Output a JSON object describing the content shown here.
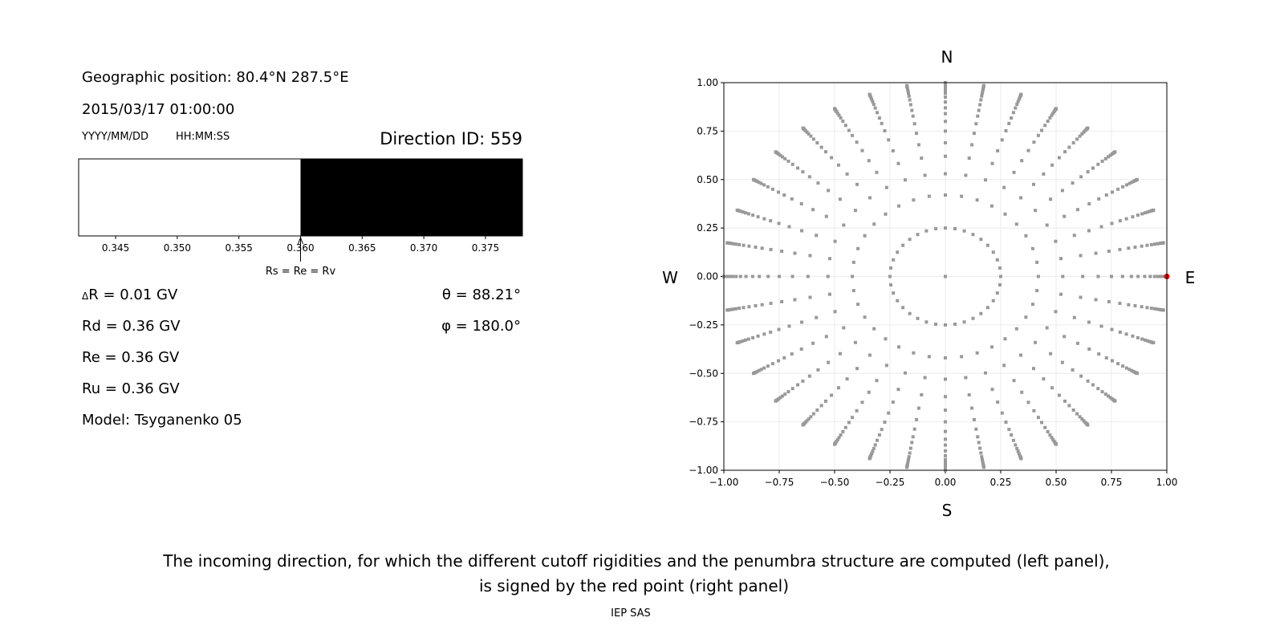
{
  "info": {
    "geo_position": "Geographic position: 80.4°N 287.5°E",
    "datetime": "2015/03/17 01:00:00",
    "date_format": "YYYY/MM/DD",
    "time_format": "HH:MM:SS",
    "direction_id": "Direction ID: 559",
    "delta_r": "R = 0.01 GV",
    "delta_symbol": "Δ",
    "rd": "Rd = 0.36 GV",
    "re": "Re = 0.36 GV",
    "ru": "Ru = 0.36 GV",
    "model": "Model: Tsyganenko 05",
    "theta": "θ = 88.21°",
    "phi": "φ = 180.0°"
  },
  "caption": {
    "line1": "The incoming direction, for which the different cutoff rigidities and the penumbra structure are computed (left panel),",
    "line2": "is signed by the red point (right panel)",
    "credit": "IEP SAS"
  },
  "chart_data": [
    {
      "type": "bar",
      "subtype": "penumbra-strip",
      "xlim": [
        0.342,
        0.378
      ],
      "xticks": [
        "0.345",
        "0.350",
        "0.355",
        "0.360",
        "0.365",
        "0.370",
        "0.375"
      ],
      "segments": [
        {
          "from": 0.342,
          "to": 0.36,
          "color": "#ffffff"
        },
        {
          "from": 0.36,
          "to": 0.378,
          "color": "#000000"
        }
      ],
      "annotation": {
        "x": 0.36,
        "text": "Rs = Re = Rv"
      }
    },
    {
      "type": "scatter",
      "xlim": [
        -1,
        1
      ],
      "ylim": [
        -1,
        1
      ],
      "grid": true,
      "xticks": [
        "−1.00",
        "−0.75",
        "−0.50",
        "−0.25",
        "0.00",
        "0.25",
        "0.50",
        "0.75",
        "1.00"
      ],
      "yticks": [
        "1.00",
        "0.75",
        "0.50",
        "0.25",
        "0.00",
        "−0.25",
        "−0.50",
        "−0.75",
        "−1.00"
      ],
      "compass": {
        "top": "N",
        "bottom": "S",
        "left": "W",
        "right": "E"
      },
      "point_color": "#999999",
      "center_point": [
        0,
        0
      ],
      "inner_ring_radius": 0.25,
      "spoke_angle_step_deg": 10,
      "spoke_radii": [
        0.42,
        0.53,
        0.62,
        0.69,
        0.75,
        0.8,
        0.84,
        0.87,
        0.9,
        0.925,
        0.945,
        0.96,
        0.972,
        0.982,
        0.99,
        0.995,
        0.998,
        1.0
      ],
      "highlight": {
        "x": 1.0,
        "y": 0.0,
        "color": "#e00000"
      }
    }
  ]
}
